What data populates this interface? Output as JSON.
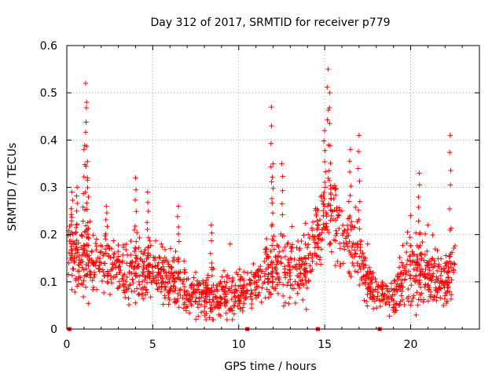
{
  "chart_data": {
    "type": "scatter",
    "title": "Day 312 of 2017, SRMTID for receiver p779",
    "xlabel": "GPS time / hours",
    "ylabel": "SRMTID / TECUs",
    "xlim": [
      0,
      24
    ],
    "ylim": [
      0,
      0.6
    ],
    "xticks": [
      0,
      5,
      10,
      15,
      20
    ],
    "yticks": [
      0,
      0.1,
      0.2,
      0.3,
      0.4,
      0.5,
      0.6
    ],
    "ytick_labels": [
      "0",
      "0.1",
      "0.2",
      "0.3",
      "0.4",
      "0.5",
      "0.6"
    ],
    "grid": true,
    "marker": "+",
    "color": "#ff0000",
    "series": [
      {
        "name": "SRMTID",
        "description": "dense point cloud; representative points listed, remaining density generated from envelope",
        "x": [
          0.2,
          0.3,
          0.4,
          0.5,
          0.6,
          0.8,
          1.0,
          1.1,
          1.15,
          1.2,
          1.3,
          1.6,
          2.0,
          2.3,
          2.6,
          3.0,
          3.5,
          4.0,
          4.2,
          4.7,
          5.0,
          5.5,
          6.0,
          6.5,
          7.0,
          7.5,
          8.0,
          8.4,
          9.0,
          9.5,
          10.0,
          10.5,
          11.0,
          11.5,
          11.9,
          12.0,
          12.1,
          12.5,
          13.0,
          13.5,
          14.0,
          14.5,
          15.0,
          15.2,
          15.3,
          15.5,
          16.0,
          16.5,
          17.0,
          17.5,
          18.0,
          18.5,
          19.0,
          19.5,
          20.0,
          20.5,
          21.0,
          21.5,
          22.0,
          22.3,
          22.5
        ],
        "y": [
          0.2,
          0.29,
          0.18,
          0.16,
          0.3,
          0.14,
          0.38,
          0.52,
          0.48,
          0.32,
          0.15,
          0.12,
          0.14,
          0.26,
          0.17,
          0.13,
          0.11,
          0.32,
          0.1,
          0.29,
          0.12,
          0.18,
          0.11,
          0.26,
          0.08,
          0.12,
          0.06,
          0.22,
          0.09,
          0.18,
          0.06,
          0.08,
          0.12,
          0.1,
          0.47,
          0.35,
          0.13,
          0.35,
          0.15,
          0.11,
          0.12,
          0.18,
          0.42,
          0.55,
          0.5,
          0.3,
          0.25,
          0.38,
          0.41,
          0.18,
          0.1,
          0.07,
          0.06,
          0.08,
          0.24,
          0.33,
          0.22,
          0.06,
          0.1,
          0.41,
          0.12
        ]
      }
    ],
    "envelope": {
      "hours": [
        0,
        1,
        2,
        3,
        4,
        5,
        6,
        7,
        8,
        9,
        10,
        11,
        12,
        13,
        14,
        15,
        16,
        17,
        18,
        19,
        20,
        21,
        22,
        22.6
      ],
      "center": [
        0.17,
        0.14,
        0.14,
        0.13,
        0.12,
        0.12,
        0.11,
        0.08,
        0.07,
        0.08,
        0.07,
        0.1,
        0.13,
        0.13,
        0.14,
        0.24,
        0.2,
        0.15,
        0.07,
        0.07,
        0.13,
        0.12,
        0.1,
        0.14
      ],
      "spread": [
        0.05,
        0.05,
        0.04,
        0.04,
        0.05,
        0.04,
        0.04,
        0.035,
        0.03,
        0.035,
        0.035,
        0.04,
        0.05,
        0.05,
        0.05,
        0.06,
        0.06,
        0.05,
        0.025,
        0.025,
        0.06,
        0.05,
        0.035,
        0.06
      ]
    },
    "receiver_marks_x": [
      0.15,
      10.5,
      14.6,
      18.2
    ]
  }
}
